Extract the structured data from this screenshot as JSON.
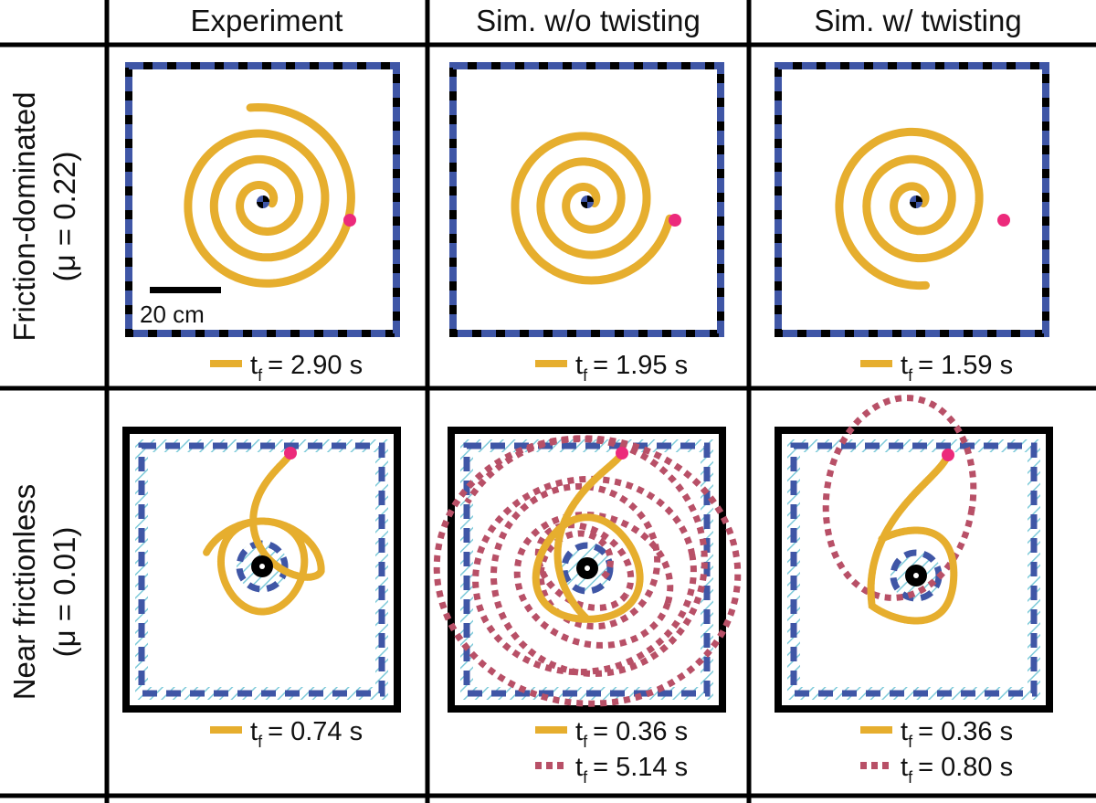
{
  "columns": [
    "Experiment",
    "Sim. w/o twisting",
    "Sim. w/ twisting"
  ],
  "rows": [
    {
      "title": "Friction-dominated",
      "param": "(μ = 0.22)"
    },
    {
      "title": "Near frictionless",
      "param": "(μ = 0.01)"
    }
  ],
  "scale_bar": "20 cm",
  "legend_symbol": "t",
  "legend_subscript": "f",
  "panels": [
    {
      "id": "friction-experiment",
      "legend": [
        {
          "style": "solid",
          "value": "= 2.90 s"
        }
      ]
    },
    {
      "id": "friction-sim-no-twist",
      "legend": [
        {
          "style": "solid",
          "value": "= 1.95 s"
        }
      ]
    },
    {
      "id": "friction-sim-twist",
      "legend": [
        {
          "style": "solid",
          "value": "= 1.59 s"
        }
      ]
    },
    {
      "id": "frictionless-experiment",
      "legend": [
        {
          "style": "solid",
          "value": "= 0.74 s"
        }
      ]
    },
    {
      "id": "frictionless-sim-no-twist",
      "legend": [
        {
          "style": "solid",
          "value": "= 0.36 s"
        },
        {
          "style": "dotted",
          "value": "= 5.14 s"
        }
      ]
    },
    {
      "id": "frictionless-sim-twist",
      "legend": [
        {
          "style": "solid",
          "value": "= 0.36 s"
        },
        {
          "style": "dotted",
          "value": "= 0.80 s"
        }
      ]
    }
  ],
  "colors": {
    "trajectory": "#E6AE2E",
    "dotted_trajectory": "#B85067",
    "start_point": "#EC2A7B",
    "boundary_dash": "#3F56A6",
    "hatch": "#7FCBDA",
    "frame": "#000000"
  }
}
